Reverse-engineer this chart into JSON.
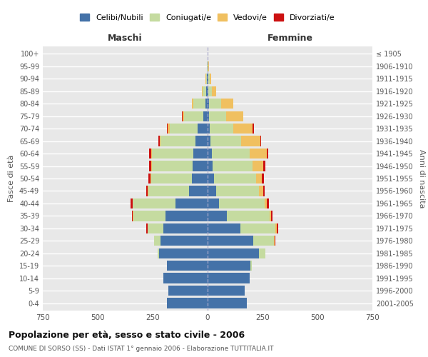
{
  "age_groups": [
    "100+",
    "95-99",
    "90-94",
    "85-89",
    "80-84",
    "75-79",
    "70-74",
    "65-69",
    "60-64",
    "55-59",
    "50-54",
    "45-49",
    "40-44",
    "35-39",
    "30-34",
    "25-29",
    "20-24",
    "15-19",
    "10-14",
    "5-9",
    "0-4"
  ],
  "birth_years": [
    "≤ 1905",
    "1906-1910",
    "1911-1915",
    "1916-1920",
    "1921-1925",
    "1926-1930",
    "1931-1935",
    "1936-1940",
    "1941-1945",
    "1946-1950",
    "1951-1955",
    "1956-1960",
    "1961-1965",
    "1966-1970",
    "1971-1975",
    "1976-1980",
    "1981-1985",
    "1986-1990",
    "1991-1995",
    "1996-2000",
    "2001-2005"
  ],
  "colors": {
    "celibi_nubili": "#4472a8",
    "coniugati_e": "#c5dba0",
    "vedovi_e": "#f0c060",
    "divorziati_e": "#cc1111"
  },
  "title": "Popolazione per età, sesso e stato civile - 2006",
  "subtitle": "COMUNE DI SORSO (SS) - Dati ISTAT 1° gennaio 2006 - Elaborazione TUTTITALIA.IT",
  "xlabel_left": "Maschi",
  "xlabel_right": "Femmine",
  "ylabel_left": "Fasce di età",
  "ylabel_right": "Anni di nascita",
  "xmax": 750,
  "legend_labels": [
    "Celibi/Nubili",
    "Coniugati/e",
    "Vedovi/e",
    "Divorziati/e"
  ],
  "background_color": "#ffffff",
  "plot_bg": "#e8e8e8",
  "grid_color": "#ffffff",
  "male_celibi": [
    1,
    1,
    3,
    5,
    9,
    18,
    45,
    55,
    65,
    68,
    72,
    85,
    145,
    190,
    200,
    215,
    220,
    185,
    200,
    180,
    185
  ],
  "male_coniugati": [
    0,
    2,
    5,
    18,
    55,
    88,
    128,
    158,
    188,
    186,
    186,
    185,
    195,
    148,
    72,
    28,
    8,
    0,
    0,
    0,
    0
  ],
  "male_vedovi": [
    0,
    0,
    2,
    4,
    8,
    8,
    8,
    5,
    4,
    3,
    3,
    2,
    2,
    2,
    2,
    0,
    0,
    0,
    0,
    0,
    0
  ],
  "male_divorziati": [
    0,
    0,
    0,
    0,
    0,
    2,
    5,
    5,
    8,
    8,
    8,
    8,
    10,
    5,
    5,
    2,
    0,
    0,
    0,
    0,
    0
  ],
  "female_nubili": [
    1,
    1,
    2,
    3,
    5,
    5,
    9,
    14,
    19,
    24,
    28,
    38,
    52,
    88,
    148,
    208,
    235,
    195,
    190,
    170,
    180
  ],
  "female_coniugate": [
    0,
    2,
    7,
    18,
    58,
    78,
    108,
    138,
    172,
    182,
    192,
    196,
    208,
    196,
    162,
    95,
    28,
    5,
    0,
    0,
    0
  ],
  "female_vedove": [
    0,
    2,
    8,
    19,
    53,
    78,
    88,
    88,
    78,
    48,
    28,
    18,
    9,
    5,
    5,
    2,
    0,
    0,
    0,
    0,
    0
  ],
  "female_divorziate": [
    0,
    0,
    0,
    0,
    0,
    2,
    5,
    5,
    8,
    8,
    8,
    8,
    10,
    5,
    5,
    2,
    0,
    0,
    0,
    0,
    0
  ]
}
